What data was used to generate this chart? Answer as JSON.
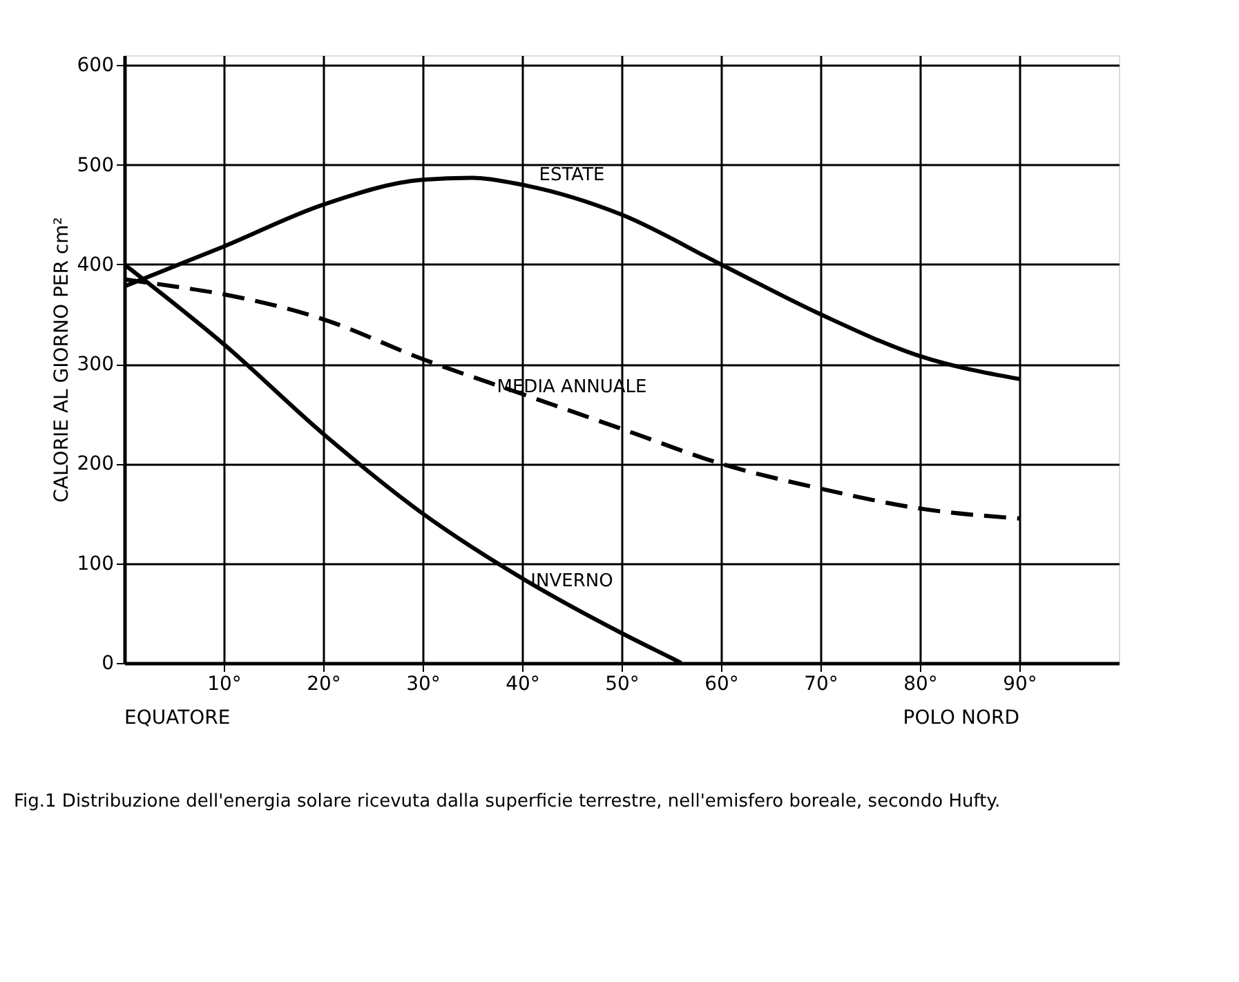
{
  "chart_data": {
    "type": "line",
    "ylabel": "CALORIE AL GIORNO PER cm²",
    "xlim": [
      0,
      100
    ],
    "ylim": [
      0,
      610
    ],
    "xticks": [
      {
        "value": 10,
        "label": "10°"
      },
      {
        "value": 20,
        "label": "20°"
      },
      {
        "value": 30,
        "label": "30°"
      },
      {
        "value": 40,
        "label": "40°"
      },
      {
        "value": 50,
        "label": "50°"
      },
      {
        "value": 60,
        "label": "60°"
      },
      {
        "value": 70,
        "label": "70°"
      },
      {
        "value": 80,
        "label": "80°"
      },
      {
        "value": 90,
        "label": "90°"
      }
    ],
    "yticks": [
      0,
      100,
      200,
      300,
      400,
      500,
      600
    ],
    "grid": true,
    "legend": false,
    "series": [
      {
        "name": "ESTATE",
        "color": "#000000",
        "line_style": "solid",
        "x": [
          0,
          10,
          20,
          30,
          35,
          40,
          50,
          60,
          70,
          80,
          90
        ],
        "values": [
          378,
          418,
          460,
          485,
          487,
          480,
          450,
          400,
          350,
          308,
          285
        ]
      },
      {
        "name": "MEDIA ANNUALE",
        "color": "#000000",
        "line_style": "dashed",
        "x": [
          0,
          5,
          10,
          20,
          30,
          40,
          50,
          60,
          70,
          80,
          90
        ],
        "values": [
          385,
          378,
          370,
          345,
          305,
          270,
          235,
          200,
          175,
          155,
          145
        ]
      },
      {
        "name": "INVERNO",
        "color": "#000000",
        "line_style": "solid",
        "x": [
          0,
          10,
          20,
          30,
          40,
          50,
          55,
          56
        ],
        "values": [
          400,
          320,
          230,
          150,
          85,
          30,
          5,
          0
        ]
      }
    ],
    "annotations": [
      "EQUATORE",
      "POLO NORD",
      "Fig.1  Distribuzione dell'energia solare ricevuta dalla superficie terrestre, nell'emisfero boreale, secondo Hufty."
    ]
  }
}
